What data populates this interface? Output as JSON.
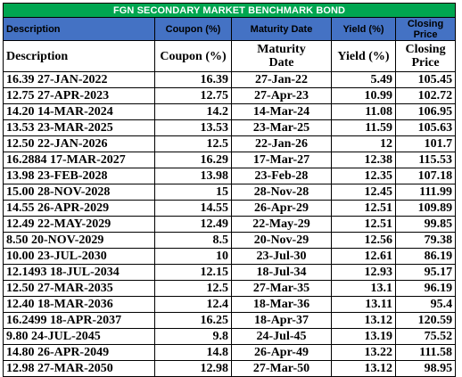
{
  "title": "FGN SECONDARY MARKET BENCHMARK BOND",
  "header_row_1": {
    "description": "Description",
    "coupon": "Coupon (%)",
    "maturity": "Maturity Date",
    "yield": "Yield (%)",
    "closing_price": "Closing Price"
  },
  "header_row_2": {
    "description": "Description",
    "coupon": "Coupon (%)",
    "maturity": "Maturity Date",
    "yield": "Yield (%)",
    "closing_price": "Closing Price"
  },
  "rows": [
    {
      "description": "16.39 27-JAN-2022",
      "coupon": "16.39",
      "maturity": "27-Jan-22",
      "yield": "5.49",
      "price": "105.45"
    },
    {
      "description": "12.75 27-APR-2023",
      "coupon": "12.75",
      "maturity": "27-Apr-23",
      "yield": "10.99",
      "price": "102.72"
    },
    {
      "description": "14.20 14-MAR-2024",
      "coupon": "14.2",
      "maturity": "14-Mar-24",
      "yield": "11.08",
      "price": "106.95"
    },
    {
      "description": "13.53 23-MAR-2025",
      "coupon": "13.53",
      "maturity": "23-Mar-25",
      "yield": "11.59",
      "price": "105.63"
    },
    {
      "description": "12.50 22-JAN-2026",
      "coupon": "12.5",
      "maturity": "22-Jan-26",
      "yield": "12",
      "price": "101.7"
    },
    {
      "description": "16.2884 17-MAR-2027",
      "coupon": "16.29",
      "maturity": "17-Mar-27",
      "yield": "12.38",
      "price": "115.53"
    },
    {
      "description": "13.98 23-FEB-2028",
      "coupon": "13.98",
      "maturity": "23-Feb-28",
      "yield": "12.35",
      "price": "107.18"
    },
    {
      "description": "15.00 28-NOV-2028",
      "coupon": "15",
      "maturity": "28-Nov-28",
      "yield": "12.45",
      "price": "111.99"
    },
    {
      "description": "14.55 26-APR-2029",
      "coupon": "14.55",
      "maturity": "26-Apr-29",
      "yield": "12.51",
      "price": "109.89"
    },
    {
      "description": "12.49 22-MAY-2029",
      "coupon": "12.49",
      "maturity": "22-May-29",
      "yield": "12.51",
      "price": "99.85"
    },
    {
      "description": "8.50 20-NOV-2029",
      "coupon": "8.5",
      "maturity": "20-Nov-29",
      "yield": "12.56",
      "price": "79.38"
    },
    {
      "description": "10.00 23-JUL-2030",
      "coupon": "10",
      "maturity": "23-Jul-30",
      "yield": "12.61",
      "price": "86.19"
    },
    {
      "description": "12.1493 18-JUL-2034",
      "coupon": "12.15",
      "maturity": "18-Jul-34",
      "yield": "12.93",
      "price": "95.17"
    },
    {
      "description": "12.50 27-MAR-2035",
      "coupon": "12.5",
      "maturity": "27-Mar-35",
      "yield": "13.1",
      "price": "96.19"
    },
    {
      "description": "12.40 18-MAR-2036",
      "coupon": "12.4",
      "maturity": "18-Mar-36",
      "yield": "13.11",
      "price": "95.4"
    },
    {
      "description": "16.2499 18-APR-2037",
      "coupon": "16.25",
      "maturity": "18-Apr-37",
      "yield": "13.12",
      "price": "120.59"
    },
    {
      "description": "9.80 24-JUL-2045",
      "coupon": "9.8",
      "maturity": "24-Jul-45",
      "yield": "13.19",
      "price": "75.52"
    },
    {
      "description": "14.80 26-APR-2049",
      "coupon": "14.8",
      "maturity": "26-Apr-49",
      "yield": "13.22",
      "price": "111.58"
    },
    {
      "description": "12.98 27-MAR-2050",
      "coupon": "12.98",
      "maturity": "27-Mar-50",
      "yield": "13.12",
      "price": "98.95"
    }
  ],
  "colors": {
    "title_bg": "#00a650",
    "title_text": "#ffffff",
    "header_bg": "#4472c4",
    "border": "#000000"
  }
}
